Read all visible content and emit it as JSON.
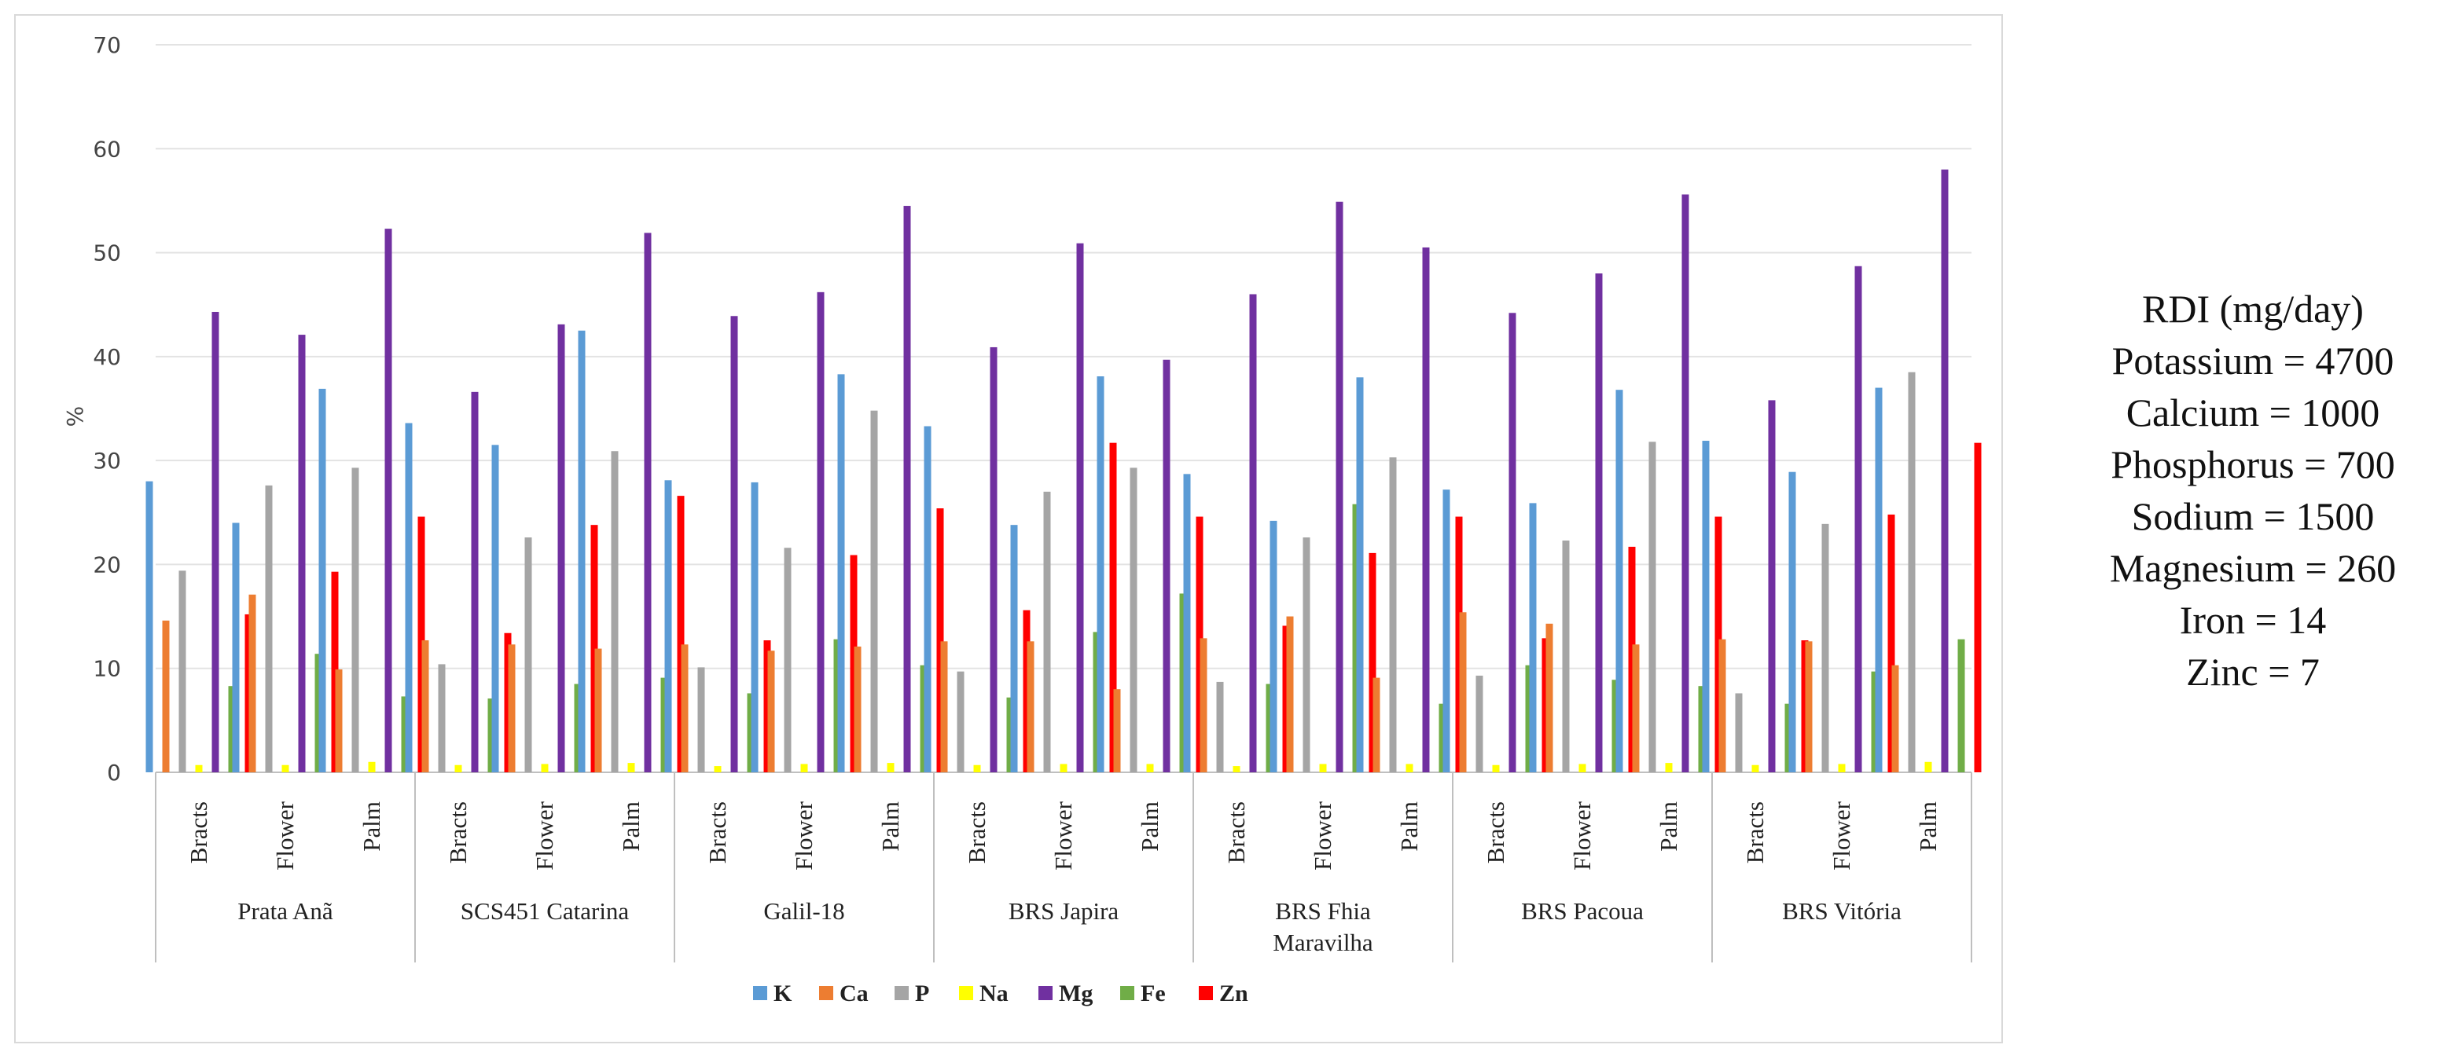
{
  "chart_data": {
    "type": "bar",
    "ylabel": "%",
    "ylim": [
      0,
      70
    ],
    "yticks": [
      0,
      10,
      20,
      30,
      40,
      50,
      60,
      70
    ],
    "grid": true,
    "legend_position": "bottom",
    "groups": [
      "Prata Anã",
      "SCS451 Catarina",
      "Galil-18",
      "BRS Japira",
      "BRS Fhia Maravilha",
      "BRS Pacoua",
      "BRS Vitória"
    ],
    "subcategories": [
      "Bracts",
      "Flower",
      "Palm"
    ],
    "series": [
      {
        "name": "K",
        "color": "#5b9bd5",
        "values": [
          28.0,
          24.0,
          36.9,
          33.6,
          31.5,
          42.5,
          28.1,
          27.9,
          38.3,
          33.3,
          23.8,
          38.1,
          28.7,
          24.2,
          38.0,
          27.2,
          25.9,
          36.8,
          31.9,
          28.9,
          37.0
        ]
      },
      {
        "name": "Ca",
        "color": "#ed7d31",
        "values": [
          14.6,
          17.1,
          9.9,
          12.7,
          12.3,
          11.9,
          12.3,
          11.7,
          12.1,
          12.6,
          12.6,
          8.0,
          12.9,
          15.0,
          9.1,
          15.4,
          14.3,
          12.3,
          12.8,
          12.6,
          10.3
        ]
      },
      {
        "name": "P",
        "color": "#a5a5a5",
        "values": [
          19.4,
          27.6,
          29.3,
          10.4,
          22.6,
          30.9,
          10.1,
          21.6,
          34.8,
          9.7,
          27.0,
          29.3,
          8.7,
          22.6,
          30.3,
          9.3,
          22.3,
          31.8,
          7.6,
          23.9,
          38.5
        ]
      },
      {
        "name": "Na",
        "color": "#ffff00",
        "values": [
          0.7,
          0.7,
          1.0,
          0.7,
          0.8,
          0.9,
          0.6,
          0.8,
          0.9,
          0.7,
          0.8,
          0.8,
          0.6,
          0.8,
          0.8,
          0.7,
          0.8,
          0.9,
          0.7,
          0.8,
          1.0
        ]
      },
      {
        "name": "Mg",
        "color": "#7030a0",
        "values": [
          44.3,
          42.1,
          52.3,
          36.6,
          43.1,
          51.9,
          43.9,
          46.2,
          54.5,
          40.9,
          50.9,
          39.7,
          46.0,
          54.9,
          50.5,
          44.2,
          48.0,
          55.6,
          35.8,
          48.7,
          58.0
        ]
      },
      {
        "name": "Fe",
        "color": "#70ad47",
        "values": [
          8.3,
          11.4,
          7.3,
          7.1,
          8.5,
          9.1,
          7.6,
          12.8,
          10.3,
          7.2,
          13.5,
          17.2,
          8.5,
          25.8,
          6.6,
          10.3,
          8.9,
          8.3,
          6.6,
          9.7,
          12.8
        ]
      },
      {
        "name": "Zn",
        "color": "#ff0000",
        "values": [
          15.2,
          19.3,
          24.6,
          13.4,
          23.8,
          26.6,
          12.7,
          20.9,
          25.4,
          15.6,
          31.7,
          24.6,
          14.1,
          21.1,
          24.6,
          12.9,
          21.7,
          24.6,
          12.7,
          24.8,
          31.7
        ]
      }
    ]
  },
  "rdi": {
    "title": "RDI (mg/day)",
    "items": [
      "Potassium = 4700",
      "Calcium = 1000",
      "Phosphorus = 700",
      "Sodium = 1500",
      "Magnesium = 260",
      "Iron = 14",
      "Zinc = 7"
    ]
  }
}
